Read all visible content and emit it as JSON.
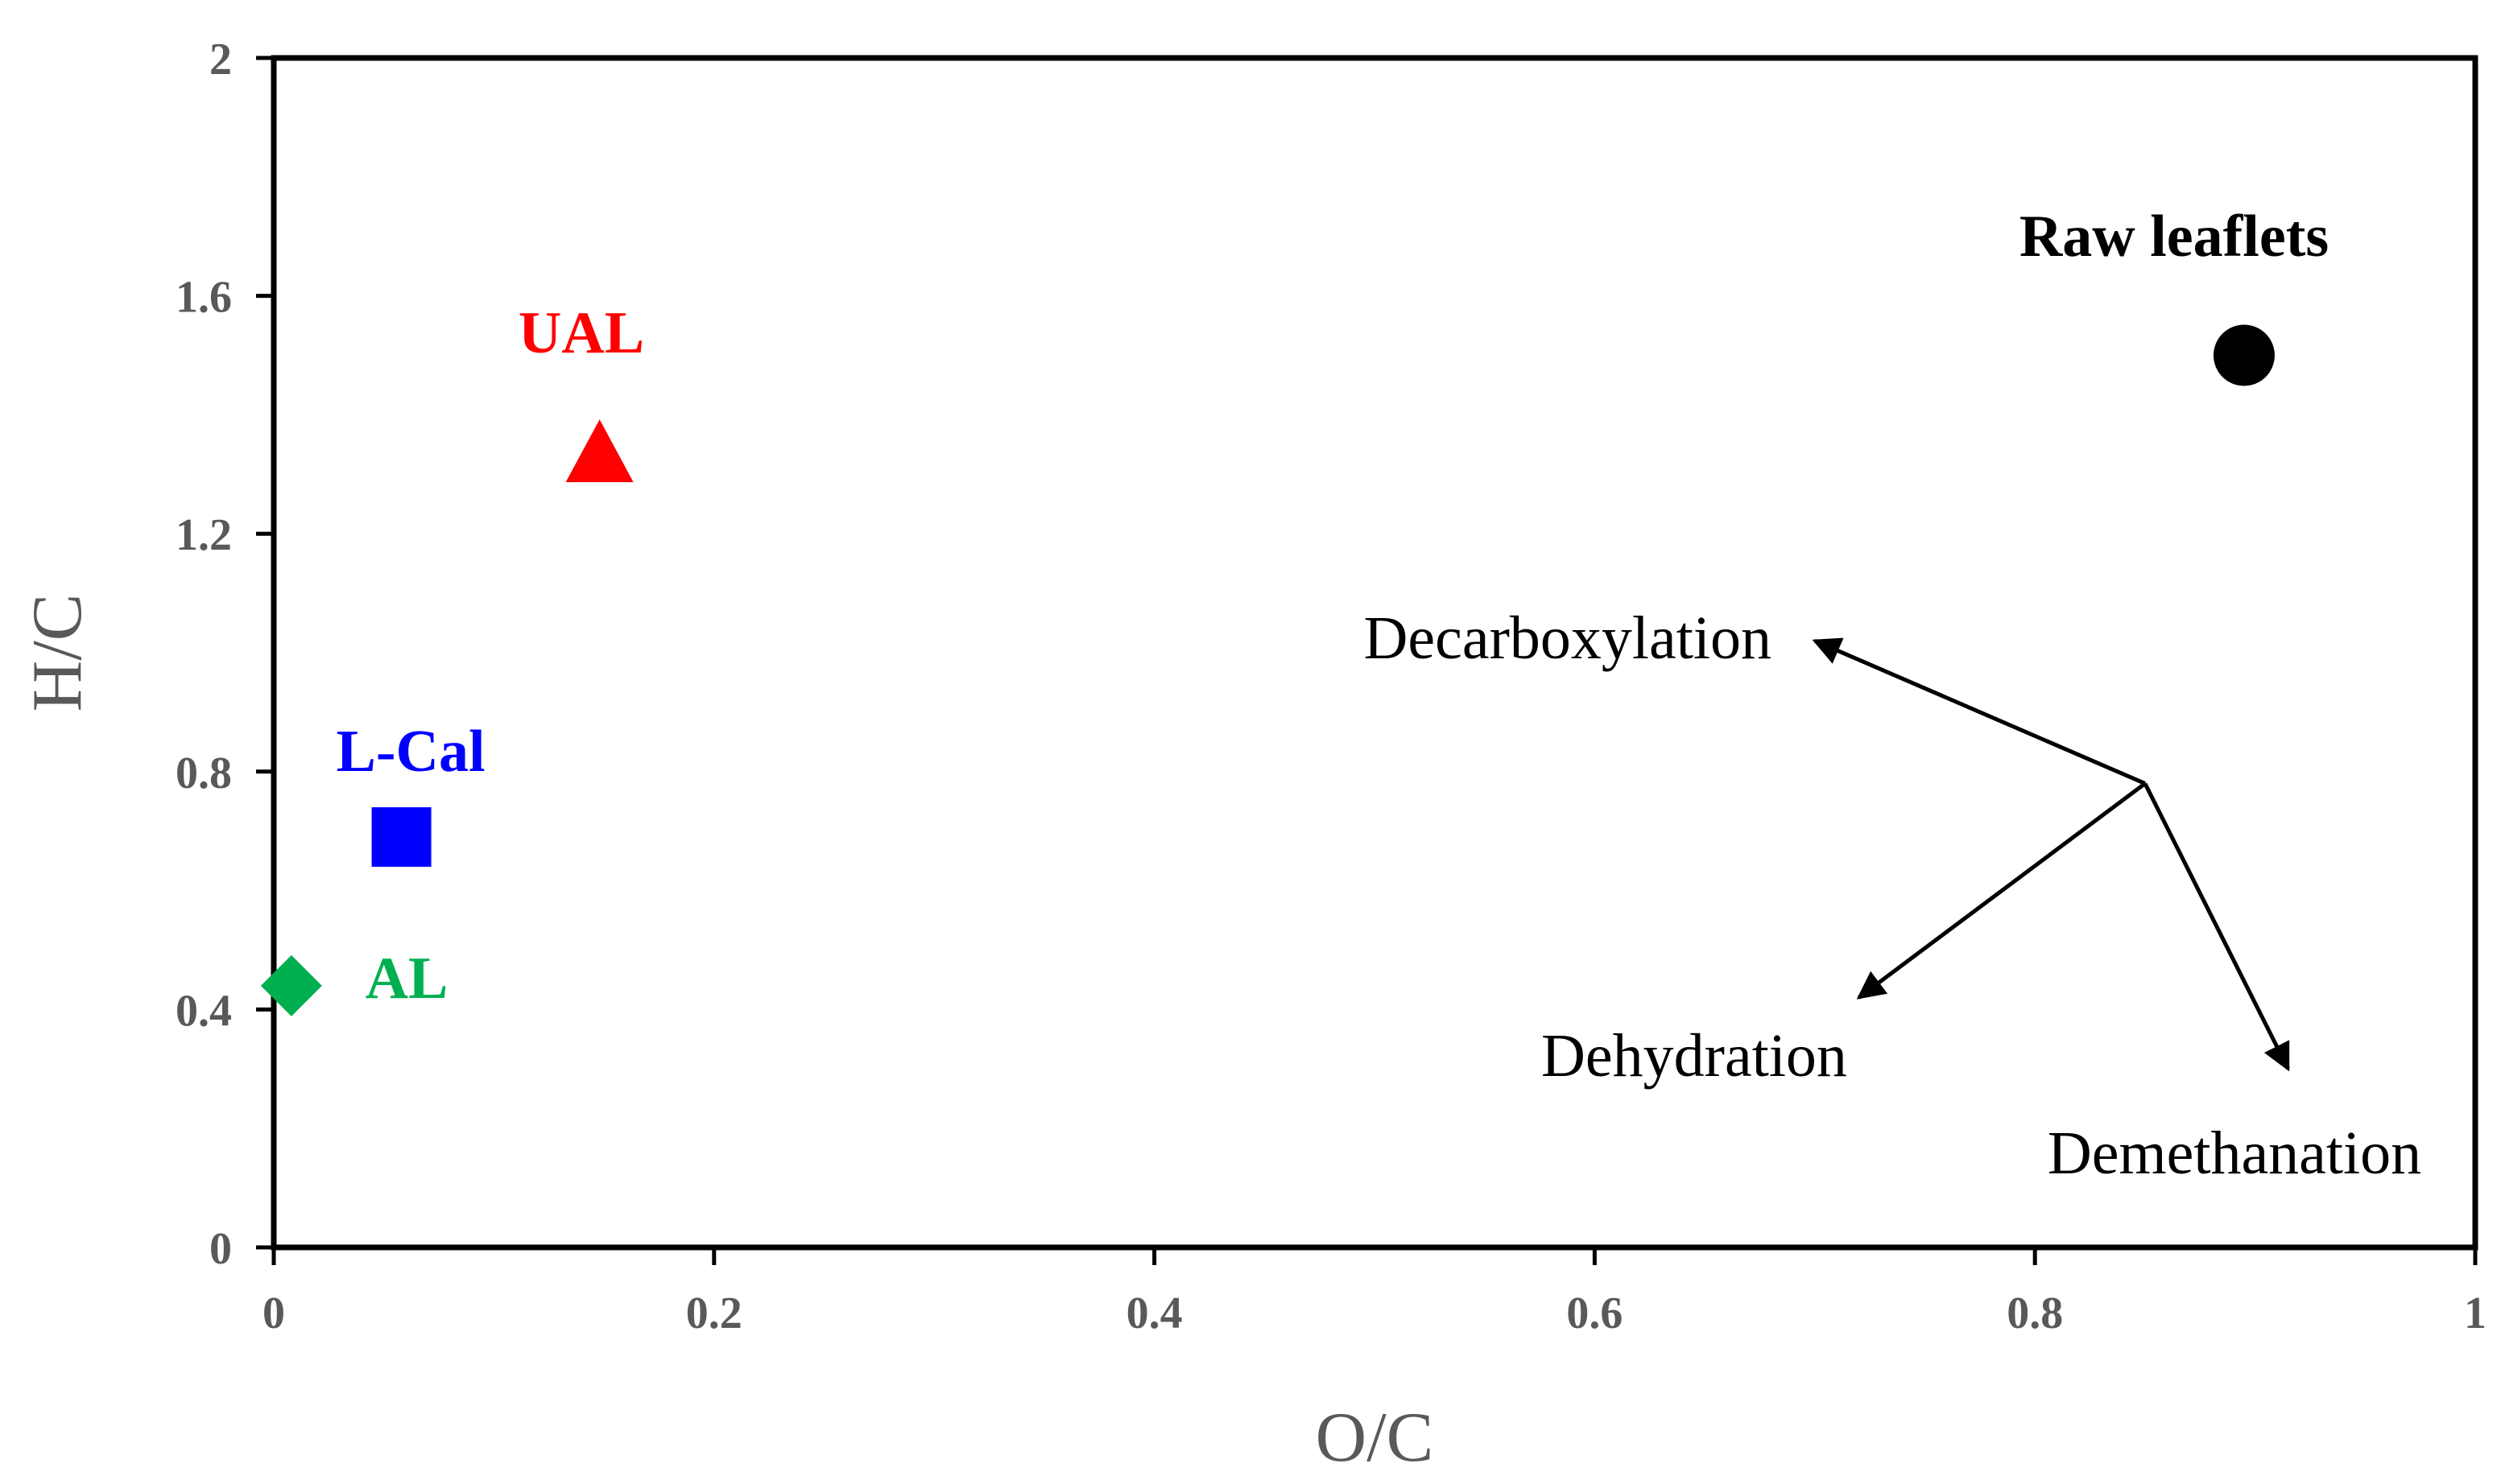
{
  "chart_data": {
    "type": "scatter",
    "title": "",
    "xlabel": "O/C",
    "ylabel": "H/C",
    "xlim": [
      0,
      1
    ],
    "ylim": [
      0,
      2
    ],
    "xticks": [
      0,
      0.2,
      0.4,
      0.6,
      0.8,
      1
    ],
    "xtick_labels": [
      "0",
      "0.2",
      "0.4",
      "0.6",
      "0.8",
      "1"
    ],
    "yticks": [
      0,
      0.4,
      0.8,
      1.2,
      1.6,
      2
    ],
    "ytick_labels": [
      "0",
      "0.4",
      "0.8",
      "1.2",
      "1.6",
      "2"
    ],
    "grid": false,
    "series": [
      {
        "name": "Raw leaflets",
        "x": 0.895,
        "y": 1.5,
        "marker": "circle",
        "color": "#000000"
      },
      {
        "name": "UAL",
        "x": 0.148,
        "y": 1.33,
        "marker": "triangle",
        "color": "#ff0000"
      },
      {
        "name": "L-Cal",
        "x": 0.058,
        "y": 0.69,
        "marker": "square",
        "color": "#0000ff"
      },
      {
        "name": "AL",
        "x": 0.008,
        "y": 0.44,
        "marker": "diamond",
        "color": "#00b050"
      }
    ],
    "annotations": {
      "origin": {
        "x": 0.85,
        "y": 0.78
      },
      "arrows": [
        {
          "label": "Decarboxylation",
          "to": {
            "x": 0.7,
            "y": 1.02
          }
        },
        {
          "label": "Dehydration",
          "to": {
            "x": 0.72,
            "y": 0.42
          }
        },
        {
          "label": "Demethanation",
          "to": {
            "x": 0.915,
            "y": 0.3
          }
        }
      ]
    }
  }
}
